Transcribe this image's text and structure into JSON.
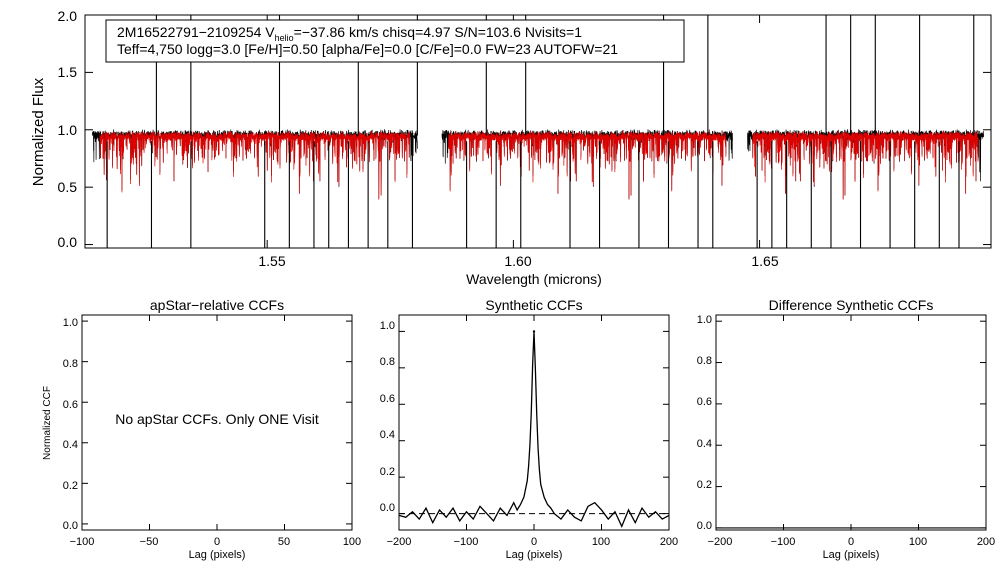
{
  "chart_data": [
    {
      "type": "line",
      "panel": "spectrum",
      "header": {
        "line1_a": "2M16522791−2109254  V",
        "line1_sub": "helio",
        "line1_b": "=−37.86 km/s  chisq=4.97  S/N=103.6  Nvisits=1",
        "line2": "Teff=4,750 logg=3.0 [Fe/H]=0.50 [alpha/Fe]=0.0 [C/Fe]=0.0 FW=23 AUTOFW=21"
      },
      "xlabel": "Wavelength (microns)",
      "ylabel": "Normalized Flux",
      "xlim": [
        1.513,
        1.697
      ],
      "ylim": [
        -0.03,
        2.0
      ],
      "xticks": [
        {
          "v": 1.55,
          "label": "1.55"
        },
        {
          "v": 1.6,
          "label": "1.60"
        },
        {
          "v": 1.65,
          "label": "1.65"
        }
      ],
      "yticks": [
        {
          "v": 0.0,
          "label": "0.0"
        },
        {
          "v": 0.5,
          "label": "0.5"
        },
        {
          "v": 1.0,
          "label": "1.0"
        },
        {
          "v": 1.5,
          "label": "1.5"
        },
        {
          "v": 2.0,
          "label": "2.0"
        }
      ],
      "chips": [
        [
          1.5145,
          1.5805
        ],
        [
          1.5855,
          1.6445
        ],
        [
          1.6475,
          1.6955
        ]
      ],
      "series": [
        {
          "name": "observed",
          "color": "#000000"
        },
        {
          "name": "model",
          "color": "#dd0000"
        }
      ],
      "spikes_up": [
        1.5275,
        1.5345,
        1.5525,
        1.5685,
        1.5805,
        1.5945,
        1.6025,
        1.6305,
        1.6395,
        1.6635,
        1.6685,
        1.6735,
        1.6825,
        1.6935
      ],
      "spikes_down": [
        1.5175,
        1.5265,
        1.5345,
        1.5495,
        1.5545,
        1.5595,
        1.5625,
        1.5665,
        1.5705,
        1.5745,
        1.5795,
        1.5905,
        1.5965,
        1.6015,
        1.6115,
        1.6175,
        1.6255,
        1.6315,
        1.6375,
        1.6405,
        1.6495,
        1.6525,
        1.6555,
        1.6605,
        1.6645,
        1.6705,
        1.6765,
        1.6815,
        1.6865,
        1.6905
      ]
    },
    {
      "type": "line",
      "panel": "apstar",
      "title": "apStar−relative CCFs",
      "xlabel": "Lag (pixels)",
      "ylabel": "Normalized CCF",
      "message": "No apStar CCFs.  Only ONE Visit",
      "xlim": [
        -100,
        100
      ],
      "ylim": [
        -0.03,
        1.03
      ],
      "xticks": [
        {
          "v": -100,
          "label": "−100"
        },
        {
          "v": -50,
          "label": "−50"
        },
        {
          "v": 0,
          "label": "0"
        },
        {
          "v": 50,
          "label": "50"
        },
        {
          "v": 100,
          "label": "100"
        }
      ],
      "yticks": [
        {
          "v": 0.0,
          "label": "0.0"
        },
        {
          "v": 0.2,
          "label": "0.2"
        },
        {
          "v": 0.4,
          "label": "0.4"
        },
        {
          "v": 0.6,
          "label": "0.6"
        },
        {
          "v": 0.8,
          "label": "0.8"
        },
        {
          "v": 1.0,
          "label": "1.0"
        }
      ]
    },
    {
      "type": "line",
      "panel": "synthetic",
      "title": "Synthetic CCFs",
      "xlabel": "Lag (pixels)",
      "xlim": [
        -200,
        200
      ],
      "ylim": [
        -0.09,
        1.09
      ],
      "xticks": [
        {
          "v": -200,
          "label": "−200"
        },
        {
          "v": -100,
          "label": "−100"
        },
        {
          "v": 0,
          "label": "0"
        },
        {
          "v": 100,
          "label": "100"
        },
        {
          "v": 200,
          "label": "200"
        }
      ],
      "yticks": [
        {
          "v": 0.0,
          "label": "0.0"
        },
        {
          "v": 0.2,
          "label": "0.2"
        },
        {
          "v": 0.4,
          "label": "0.4"
        },
        {
          "v": 0.6,
          "label": "0.6"
        },
        {
          "v": 0.8,
          "label": "0.8"
        },
        {
          "v": 1.0,
          "label": "1.0"
        }
      ],
      "peak": {
        "lag": 0,
        "value": 1.0
      },
      "baseline": 0.0,
      "ccf": {
        "x": [
          -200,
          -190,
          -180,
          -170,
          -160,
          -150,
          -140,
          -130,
          -120,
          -110,
          -100,
          -90,
          -80,
          -70,
          -60,
          -50,
          -40,
          -30,
          -25,
          -20,
          -15,
          -10,
          -8,
          -6,
          -4,
          -2,
          0,
          2,
          4,
          6,
          8,
          10,
          15,
          20,
          25,
          30,
          40,
          50,
          60,
          70,
          80,
          90,
          100,
          110,
          120,
          130,
          140,
          150,
          160,
          170,
          180,
          190,
          200
        ],
        "y": [
          -0.01,
          -0.02,
          0.01,
          -0.03,
          0.03,
          -0.05,
          0.02,
          -0.02,
          0.03,
          -0.04,
          0.01,
          -0.03,
          0.04,
          0.0,
          -0.04,
          0.03,
          -0.01,
          0.06,
          0.02,
          0.05,
          0.09,
          0.18,
          0.26,
          0.38,
          0.56,
          0.82,
          1.0,
          0.8,
          0.55,
          0.36,
          0.24,
          0.16,
          0.09,
          0.05,
          0.03,
          0.0,
          -0.03,
          0.02,
          -0.02,
          -0.04,
          0.04,
          0.06,
          0.02,
          -0.03,
          0.01,
          -0.07,
          0.02,
          -0.05,
          0.03,
          -0.02,
          0.01,
          -0.03,
          -0.01
        ]
      }
    },
    {
      "type": "line",
      "panel": "difference",
      "title": "Difference Synthetic CCFs",
      "xlabel": "Lag (pixels)",
      "xlim": [
        -200,
        200
      ],
      "ylim": [
        -0.01,
        1.03
      ],
      "xticks": [
        {
          "v": -200,
          "label": "−200"
        },
        {
          "v": -100,
          "label": "−100"
        },
        {
          "v": 0,
          "label": "0"
        },
        {
          "v": 100,
          "label": "100"
        },
        {
          "v": 200,
          "label": "200"
        }
      ],
      "yticks": [
        {
          "v": 0.0,
          "label": "0.0"
        },
        {
          "v": 0.2,
          "label": "0.2"
        },
        {
          "v": 0.4,
          "label": "0.4"
        },
        {
          "v": 0.6,
          "label": "0.6"
        },
        {
          "v": 0.8,
          "label": "0.8"
        },
        {
          "v": 1.0,
          "label": "1.0"
        }
      ],
      "flat_value": 0.0
    }
  ]
}
